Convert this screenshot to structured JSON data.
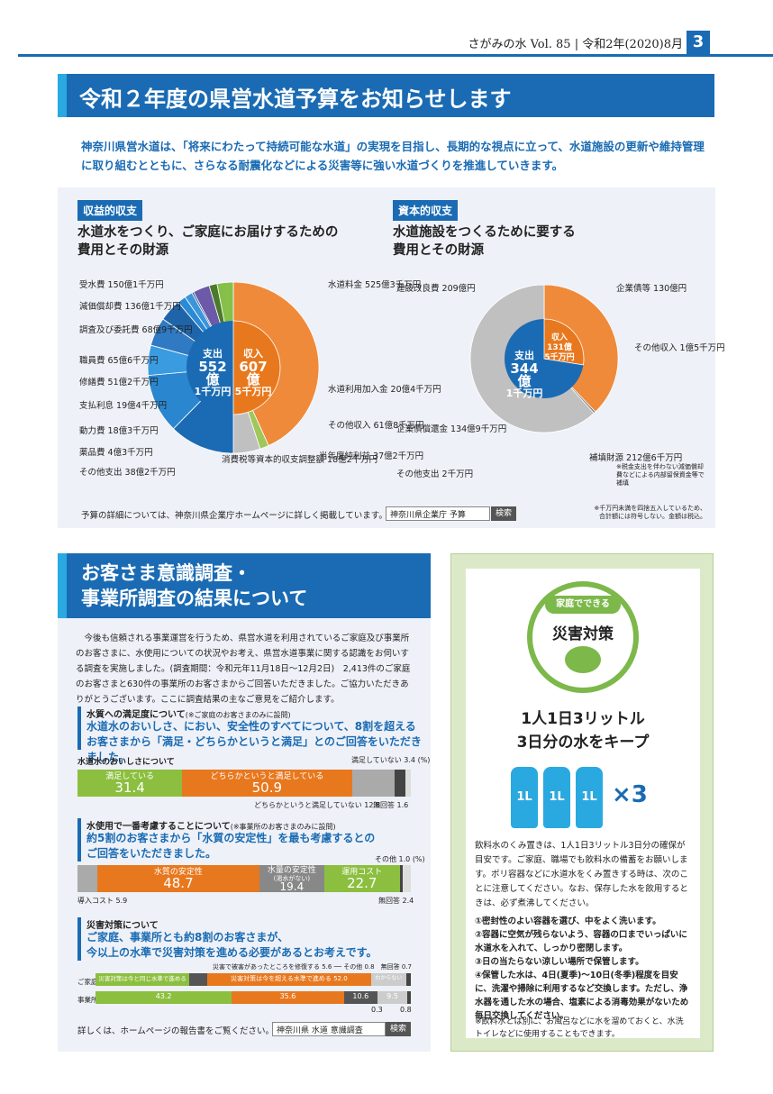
{
  "header": {
    "text": "さがみの水 Vol. 85 | 令和2年(2020)8月",
    "page": "3"
  },
  "section1": {
    "title": "令和２年度の県営水道予算をお知らせします",
    "intro": "神奈川県営水道は、「将来にわたって持続可能な水道」の実現を目指し、長期的な視点に立って、水道施設の更新や維持管理に取り組むとともに、さらなる耐震化などによる災害等に強い水道づくりを推進していきます。"
  },
  "left_chart": {
    "tag": "収益的収支",
    "title1": "水道水をつくり、ご家庭にお届けするための",
    "title2": "費用とその財源",
    "center_out": "支出",
    "center_out_val": "552億",
    "center_out_val2": "1千万円",
    "center_in": "収入",
    "center_in_val": "607億",
    "center_in_val2": "5千万円",
    "labels": [
      {
        "name": "受水費",
        "value": "150億1千万円"
      },
      {
        "name": "減価償却費",
        "value": "136億1千万円"
      },
      {
        "name": "調査及び委託費",
        "value": "68億9千万円"
      },
      {
        "name": "職員費",
        "value": "65億6千万円"
      },
      {
        "name": "修繕費",
        "value": "51億2千万円"
      },
      {
        "name": "支払利息",
        "value": "19億4千万円"
      },
      {
        "name": "動力費",
        "value": "18億3千万円"
      },
      {
        "name": "薬品費",
        "value": "4億3千万円"
      },
      {
        "name": "その他支出",
        "value": "38億2千万円"
      },
      {
        "name": "消費税等資本的収支調整額",
        "value": "18億2千万円"
      },
      {
        "name": "当年度純利益",
        "value": "37億2千万円"
      },
      {
        "name": "水道料金",
        "value": "525億3千万円"
      },
      {
        "name": "水道利用加入金",
        "value": "20億4千万円"
      },
      {
        "name": "その他収入",
        "value": "61億8千万円"
      }
    ]
  },
  "right_chart": {
    "tag": "資本的収支",
    "title1": "水道施設をつくるために要する",
    "title2": "費用とその財源",
    "center_out": "支出",
    "center_out_val": "344億",
    "center_out_val2": "1千万円",
    "center_in": "収入",
    "center_in_val": "131億",
    "center_in_val2": "5千万円",
    "labels": [
      {
        "name": "建設改良費",
        "value": "209億円"
      },
      {
        "name": "企業債等",
        "value": "130億円"
      },
      {
        "name": "その他収入",
        "value": "1億5千万円"
      },
      {
        "name": "企業債償還金",
        "value": "134億9千万円"
      },
      {
        "name": "補填財源",
        "value": "212億6千万円"
      },
      {
        "name": "その他支出",
        "value": "2千万円"
      }
    ],
    "note1": "※税金支出を伴わない減価償却費などによる内部留保資金等で補填",
    "note2": "※千万円未満を四捨五入しているため、合計額には符号しない。金額は税込。"
  },
  "detail": {
    "text": "予算の詳細については、神奈川県企業庁ホームページに詳しく掲載しています。",
    "search": "神奈川県企業庁 予算",
    "button": "検索"
  },
  "chart_data": [
    {
      "type": "pie",
      "title": "収益的収支 支出",
      "values": [
        150.1,
        136.1,
        68.9,
        65.6,
        51.2,
        19.4,
        18.3,
        4.3,
        38.2,
        18.2,
        37.2
      ],
      "categories": [
        "受水費",
        "減価償却費",
        "調査及び委託費",
        "職員費",
        "修繕費",
        "支払利息",
        "動力費",
        "薬品費",
        "その他支出",
        "消費税等資本的収支調整額",
        "当年度純利益"
      ]
    },
    {
      "type": "pie",
      "title": "収益的収支 収入",
      "values": [
        525.3,
        20.4,
        61.8
      ],
      "categories": [
        "水道料金",
        "水道利用加入金",
        "その他収入"
      ]
    },
    {
      "type": "pie",
      "title": "資本的収支 支出",
      "values": [
        209,
        134.9,
        0.2
      ],
      "categories": [
        "建設改良費",
        "企業債償還金",
        "その他支出"
      ]
    },
    {
      "type": "pie",
      "title": "資本的収支 収入",
      "values": [
        130,
        1.5,
        212.6
      ],
      "categories": [
        "企業債等",
        "その他収入",
        "補填財源"
      ]
    }
  ],
  "section2": {
    "title1": "お客さま意識調査・",
    "title2": "事業所調査の結果について",
    "body": "今後も信頼される事業運営を行うため、県営水道を利用されているご家庭及び事業所のお客さまに、水使用についての状況やお考え、県営水道事業に関する認識をお伺いする調査を実施しました。(調査期間：令和元年11月18日～12月2日)　2,413件のご家庭のお客さまと630件の事業所のお客さまからご回答いただきました。ご協力いただきありがとうございます。ここに調査結果の主なご意見をご紹介します。",
    "q1_title": "水質への満足度について",
    "q1_note": "(※ご家庭のお客さまのみに設問)",
    "q1_blue1": "水道水のおいしさ、におい、安全性のすべてについて、8割を超える",
    "q1_blue2": "お客さまから「満足・どちらかというと満足」とのご回答をいただきました。",
    "q1_bar_label": "水道水のおいしさについて",
    "q1_seg1": "満足している",
    "q1_val1": "31.4",
    "q1_seg2": "どちらかというと満足している",
    "q1_val2": "50.9",
    "q1_note_top": "満足していない 3.4",
    "q1_note_bot": "どちらかというと満足していない 12.8",
    "q1_note_na": "無回答 1.6",
    "pct": "(%)",
    "q2_title": "水使用で一番考慮することについて",
    "q2_note": "(※事業所のお客さまのみに設問)",
    "q2_blue1": "約5割のお客さまから「水質の安定性」を最も考慮するとの",
    "q2_blue2": "ご回答をいただきました。",
    "q2_other": "その他 1.0",
    "q2_seg1": "水質の安定性",
    "q2_val1": "48.7",
    "q2_seg2": "水量の安定性",
    "q2_sub2": "(渇水がない)",
    "q2_val2": "19.4",
    "q2_seg3": "運用コスト",
    "q2_val3": "22.7",
    "q2_intro": "導入コスト 5.9",
    "q2_na": "無回答 2.4",
    "q3_title": "災害対策について",
    "q3_blue1": "ご家庭、事業所とも約8割のお客さまが、",
    "q3_blue2": "今以上の水準で災害対策を進める必要があるとお考えです。",
    "q3_top": "災害で被害があったところを修復する 5.6 ── その他 0.8　無回答 0.7",
    "q3_row1": "ご家庭",
    "q3_row2": "事業所",
    "q3_a1": "災害対策は今と同じ水準で進める 29.8",
    "q3_a2": "災害対策は今を超える水準で進める 52.0",
    "q3_a3": "わからない 11.1",
    "q3_b1": "43.2",
    "q3_b2": "35.6",
    "q3_b3": "10.6",
    "q3_b4": "9.5",
    "q3_bot1": "0.3",
    "q3_bot2": "0.8",
    "detail": "詳しくは、ホームページの報告書をご覧ください。",
    "search": "神奈川県 水道 意識調査",
    "button": "検索"
  },
  "bar_chart_data": [
    {
      "type": "bar",
      "title": "水道水のおいしさについて",
      "categories": [
        "満足している",
        "どちらかというと満足している",
        "どちらかというと満足していない",
        "満足していない",
        "無回答"
      ],
      "values": [
        31.4,
        50.9,
        12.8,
        3.4,
        1.6
      ]
    },
    {
      "type": "bar",
      "title": "水使用で一番考慮すること",
      "categories": [
        "導入コスト",
        "水質の安定性",
        "水量の安定性",
        "運用コスト",
        "その他",
        "無回答"
      ],
      "values": [
        5.9,
        48.7,
        19.4,
        22.7,
        1.0,
        2.4
      ]
    }
  ],
  "disaster": {
    "badge_top": "家庭でできる",
    "badge": "災害対策",
    "h1": "1人1日3リットル",
    "h2": "3日分の水をキープ",
    "bottle": "1L",
    "times": "×3",
    "p1": "飲料水のくみ置きは、1人1日3リットル3日分の確保が目安です。ご家庭、職場でも飲料水の備蓄をお願いします。ポリ容器などに水道水をくみ置きする時は、次のことに注意してください。なお、保存した水を飲用するときは、必ず煮沸してください。",
    "items": [
      "①密封性のよい容器を選び、中をよく洗います。",
      "②容器に空気が残らないよう、容器の口までいっぱいに水道水を入れて、しっかり密閉します。",
      "③日の当たらない涼しい場所で保管します。",
      "④保管した水は、4日(夏季)～10日(冬季)程度を目安に、洗濯や掃除に利用するなど交換します。ただし、浄水器を通した水の場合、塩素による消毒効果がないため毎日交換してください。"
    ],
    "note": "※飲料水とは別に、お風呂などに水を溜めておくと、水洗トイレなどに使用することもできます。"
  }
}
